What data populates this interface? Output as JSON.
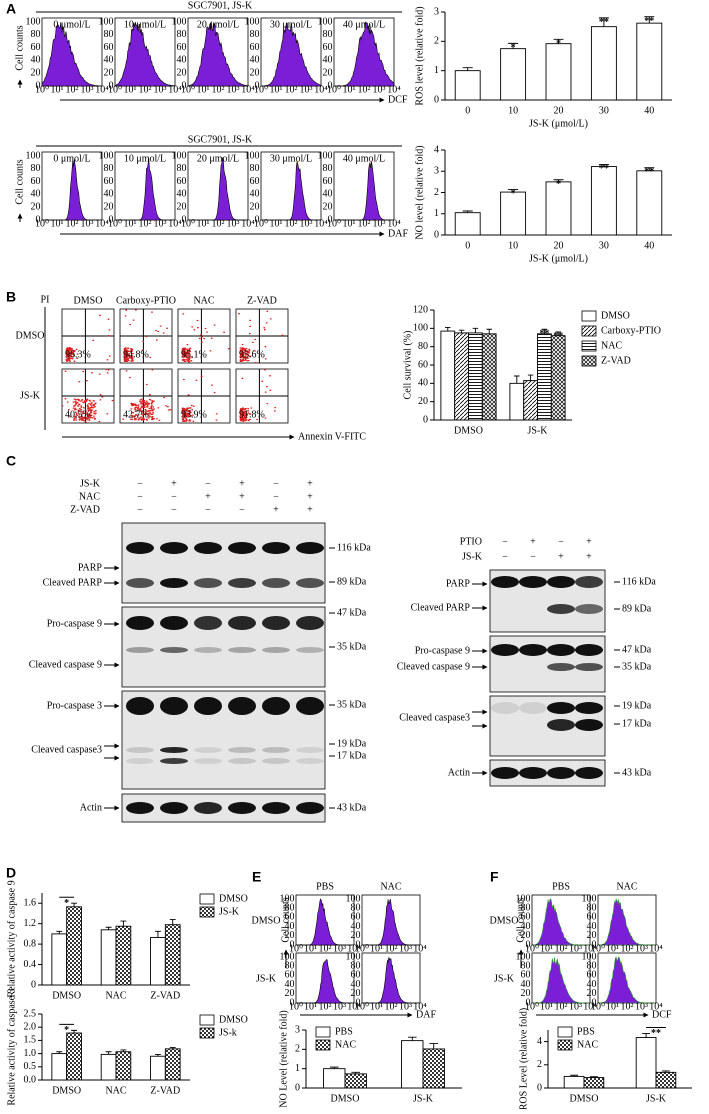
{
  "chart_data": [
    {
      "type": "bar",
      "y_label": "ROS level (relative fold)",
      "x_label": "JS-K (μmol/L)",
      "categories": [
        "0",
        "10",
        "20",
        "30",
        "40"
      ],
      "values": [
        1,
        1.75,
        1.92,
        2.5,
        2.62
      ],
      "errors": [
        0.1,
        0.18,
        0.15,
        0.3,
        0.22
      ],
      "stars": [
        null,
        "*",
        "*",
        "**",
        "**"
      ],
      "color": "#ffffff",
      "ylim": [
        0,
        3
      ],
      "yticks": [
        0,
        1,
        2,
        3
      ]
    },
    {
      "type": "bar",
      "y_label": "NO level (relative fold)",
      "x_label": "JS-K (μmol/L)",
      "categories": [
        "0",
        "10",
        "20",
        "30",
        "40"
      ],
      "values": [
        1.05,
        2.02,
        2.5,
        3.22,
        3.02
      ],
      "errors": [
        0.08,
        0.12,
        0.1,
        0.1,
        0.15
      ],
      "stars": [
        null,
        "*",
        "*",
        "**",
        "**"
      ],
      "color": "#ffffff",
      "ylim": [
        0,
        4
      ],
      "yticks": [
        0,
        1,
        2,
        3,
        4
      ]
    },
    {
      "type": "bar",
      "y_label": "Cell survival (%)",
      "categories": [
        "DMSO",
        "JS-K"
      ],
      "legend": "right",
      "ylim": [
        0,
        120
      ],
      "yticks": [
        0,
        20,
        40,
        60,
        80,
        100,
        120
      ],
      "series": [
        {
          "name": "DMSO",
          "color": "#ffffff",
          "values": [
            97,
            40
          ],
          "errors": [
            4,
            8
          ]
        },
        {
          "name": "Carboxy-PTIO",
          "color": "#ffffff",
          "pattern": "diagonal",
          "values": [
            95,
            43
          ],
          "errors": [
            3,
            6
          ]
        },
        {
          "name": "NAC",
          "color": "#ffffff",
          "pattern": "horizontal",
          "values": [
            95,
            94
          ],
          "errors": [
            5,
            5
          ],
          "stars": [
            null,
            "**"
          ]
        },
        {
          "name": "Z-VAD",
          "color": "#ffffff",
          "pattern": "crosshatch",
          "values": [
            94,
            92
          ],
          "errors": [
            5,
            4
          ],
          "stars": [
            null,
            "**"
          ]
        }
      ]
    },
    {
      "type": "bar",
      "y_label": "Relative activity of caspase 9",
      "categories": [
        "DMSO",
        "NAC",
        "Z-VAD"
      ],
      "legend": "right",
      "ylim": [
        0,
        1.8
      ],
      "yticks": [
        0,
        0.4,
        0.8,
        1.2,
        1.6
      ],
      "group_stars": [
        "*",
        null,
        null
      ],
      "series": [
        {
          "name": "DMSO",
          "color": "#ffffff",
          "values": [
            1.0,
            1.08,
            0.93
          ],
          "errors": [
            0.05,
            0.05,
            0.12
          ]
        },
        {
          "name": "JS-K",
          "color": "#ffffff",
          "pattern": "checker",
          "values": [
            1.53,
            1.15,
            1.18
          ],
          "errors": [
            0.07,
            0.1,
            0.1
          ]
        }
      ]
    },
    {
      "type": "bar",
      "y_label": "Relative activity of caspase 3",
      "categories": [
        "DMSO",
        "NAC",
        "Z-VAD"
      ],
      "legend": "right",
      "ylim": [
        0,
        2.5
      ],
      "yticks": [
        {
          "value": 0,
          "label": "0.0"
        },
        0.5,
        {
          "value": 1,
          "label": "1.0"
        },
        1.5,
        {
          "value": 2,
          "label": "2.0"
        },
        2.5
      ],
      "group_stars": [
        "*",
        null,
        null
      ],
      "series": [
        {
          "name": "DMSO",
          "color": "#ffffff",
          "values": [
            1.0,
            0.97,
            0.9
          ],
          "errors": [
            0.07,
            0.1,
            0.07
          ]
        },
        {
          "name": "JS-k",
          "color": "#ffffff",
          "pattern": "checker",
          "values": [
            1.78,
            1.07,
            1.18
          ],
          "errors": [
            0.1,
            0.07,
            0.05
          ]
        }
      ]
    },
    {
      "type": "bar",
      "y_label": "NO Level (relative fold)",
      "categories": [
        "DMSO",
        "JS-K"
      ],
      "legend": "upper-left",
      "ylim": [
        0,
        3
      ],
      "yticks": [
        0,
        1,
        2,
        3
      ],
      "series": [
        {
          "name": "PBS",
          "color": "#ffffff",
          "values": [
            1.0,
            2.45
          ],
          "errors": [
            0.08,
            0.18
          ]
        },
        {
          "name": "NAC",
          "color": "#ffffff",
          "pattern": "checker",
          "values": [
            0.73,
            2.02
          ],
          "errors": [
            0.08,
            0.28
          ]
        }
      ]
    },
    {
      "type": "bar",
      "y_label": "ROS Level (relative fold)",
      "categories": [
        "DMSO",
        "JS-K"
      ],
      "legend": "upper-left",
      "ylim": [
        0,
        5
      ],
      "yticks": [
        0,
        2,
        4
      ],
      "group_stars": [
        null,
        "**"
      ],
      "series": [
        {
          "name": "PBS",
          "color": "#ffffff",
          "values": [
            1.0,
            4.35
          ],
          "errors": [
            0.1,
            0.35
          ]
        },
        {
          "name": "NAC",
          "color": "#ffffff",
          "pattern": "checker",
          "values": [
            0.9,
            1.35
          ],
          "errors": [
            0.07,
            0.12
          ]
        }
      ]
    }
  ],
  "figure": {
    "panel_labels": [
      "A",
      "B",
      "C",
      "D",
      "E",
      "F"
    ],
    "hist_xticks": [
      "10⁰",
      "10¹",
      "10²",
      "10³",
      "10⁴"
    ],
    "hist_yticks": [
      0,
      20,
      40,
      60,
      80,
      100
    ],
    "A": {
      "header": "SGC7901, JS-K",
      "concentrations": [
        "0 μmol/L",
        "10 μmol/L",
        "20 μmol/L",
        "30 μmol/L",
        "40 μmol/L"
      ],
      "y_label": "Cell counts",
      "x_label_1": "DCF",
      "x_label_2": "DAF"
    },
    "B": {
      "columns": [
        "DMSO",
        "Carboxy-PTIO",
        "NAC",
        "Z-VAD"
      ],
      "rows": [
        "DMSO",
        "JS-K"
      ],
      "percents": [
        [
          "96.3%",
          "94.8%",
          "95.1%",
          "95.6%"
        ],
        [
          "40.5%",
          "42.7%",
          "93.9%",
          "91.8%"
        ]
      ],
      "y_label": "PI",
      "x_label": "Annexin V-FITC"
    },
    "C": {
      "left": {
        "treatments": [
          {
            "name": "JS-K",
            "signs": [
              "−",
              "+",
              "−",
              "+",
              "−",
              "+"
            ]
          },
          {
            "name": "NAC",
            "signs": [
              "−",
              "−",
              "+",
              "+",
              "−",
              "+"
            ]
          },
          {
            "name": "Z-VAD",
            "signs": [
              "−",
              "−",
              "−",
              "−",
              "+",
              "+"
            ]
          }
        ],
        "bands": [
          "PARP",
          "Cleaved PARP",
          "Pro-caspase 9",
          "Cleaved caspase 9",
          "Pro-caspase 3",
          "Cleaved caspase3",
          "Actin"
        ],
        "markers": [
          "116 kDa",
          "89 kDa",
          "47 kDa",
          "35 kDa",
          "35 kDa",
          "19 kDa",
          "17 kDa",
          "43 kDa"
        ]
      },
      "right": {
        "treatments": [
          {
            "name": "PTIO",
            "signs": [
              "−",
              "+",
              "−",
              "+"
            ]
          },
          {
            "name": "JS-K",
            "signs": [
              "−",
              "−",
              "+",
              "+"
            ]
          }
        ],
        "bands": [
          "PARP",
          "Cleaved PARP",
          "Pro-caspase 9",
          "Cleaved caspase 9",
          "Cleaved caspase3",
          "Actin"
        ],
        "markers": [
          "116 kDa",
          "89 kDa",
          "47 kDa",
          "35 kDa",
          "19 kDa",
          "17 kDa",
          "43 kDa"
        ]
      }
    },
    "E": {
      "columns": [
        "PBS",
        "NAC"
      ],
      "rows": [
        "DMSO",
        "JS-K"
      ],
      "y_label": "Cell counts",
      "x_label": "DAF"
    },
    "F": {
      "columns": [
        "PBS",
        "NAC"
      ],
      "rows": [
        "DMSO",
        "JS-K"
      ],
      "y_label": "Cell counts",
      "x_label": "DCF"
    }
  }
}
